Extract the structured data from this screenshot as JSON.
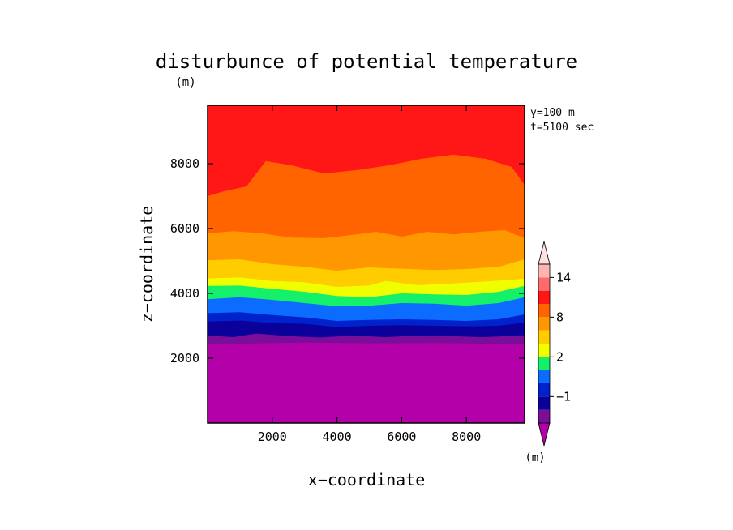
{
  "chart_data": {
    "type": "contour",
    "title": "disturbunce of potential temperature",
    "xlabel": "x−coordinate",
    "ylabel": "z−coordinate",
    "yunit": "(m)",
    "xticks": [
      "2000",
      "4000",
      "6000",
      "8000"
    ],
    "yticks": [
      "2000",
      "4000",
      "6000",
      "8000"
    ],
    "xtick_values": [
      2000,
      4000,
      6000,
      8000
    ],
    "ytick_values": [
      2000,
      4000,
      6000,
      8000
    ],
    "xlim": [
      0,
      9800
    ],
    "ylim": [
      0,
      9800
    ],
    "annotations": [
      "y=100 m",
      "t=5100 sec"
    ],
    "colorbar": {
      "unit": "(m)",
      "tick_labels": [
        "14",
        "8",
        "2",
        "−1"
      ],
      "tick_levels": [
        14,
        8,
        2,
        -1
      ],
      "levels": [
        -3,
        -2,
        -1,
        0,
        1,
        2,
        4,
        6,
        8,
        10,
        12,
        14,
        16
      ],
      "colors": [
        "#7a0d9a",
        "#0c009a",
        "#0022cc",
        "#0c6cff",
        "#14f06a",
        "#f0ff00",
        "#ffcc00",
        "#ff9800",
        "#ff6400",
        "#ff1616",
        "#ff6a6a",
        "#ffb4b4"
      ],
      "under_color": "#b400a8",
      "over_color": "#ffe0e0"
    },
    "contour_bands": [
      {
        "level": -3,
        "color": "#b400a8",
        "top": [
          [
            0,
            2420
          ],
          [
            1500,
            2460
          ],
          [
            3000,
            2480
          ],
          [
            5000,
            2460
          ],
          [
            7000,
            2470
          ],
          [
            8500,
            2450
          ],
          [
            9800,
            2440
          ]
        ]
      },
      {
        "level": -2,
        "color": "#7a0d9a",
        "top": [
          [
            0,
            2700
          ],
          [
            800,
            2650
          ],
          [
            1500,
            2760
          ],
          [
            2500,
            2680
          ],
          [
            3500,
            2640
          ],
          [
            4500,
            2700
          ],
          [
            5500,
            2650
          ],
          [
            6500,
            2700
          ],
          [
            7500,
            2680
          ],
          [
            8500,
            2650
          ],
          [
            9800,
            2700
          ]
        ]
      },
      {
        "level": -1,
        "color": "#0c009a",
        "top": [
          [
            0,
            3130
          ],
          [
            1000,
            3160
          ],
          [
            2000,
            3080
          ],
          [
            3000,
            3060
          ],
          [
            4000,
            2960
          ],
          [
            5000,
            3000
          ],
          [
            6000,
            3020
          ],
          [
            7000,
            3000
          ],
          [
            8000,
            2980
          ],
          [
            9000,
            3000
          ],
          [
            9800,
            3100
          ]
        ]
      },
      {
        "level": 0,
        "color": "#0022cc",
        "top": [
          [
            0,
            3390
          ],
          [
            1000,
            3420
          ],
          [
            2000,
            3330
          ],
          [
            3000,
            3260
          ],
          [
            4000,
            3150
          ],
          [
            5000,
            3180
          ],
          [
            6000,
            3200
          ],
          [
            7000,
            3180
          ],
          [
            8000,
            3150
          ],
          [
            9000,
            3200
          ],
          [
            9800,
            3350
          ]
        ]
      },
      {
        "level": 1,
        "color": "#0c6cff",
        "top": [
          [
            0,
            3820
          ],
          [
            1000,
            3880
          ],
          [
            2000,
            3800
          ],
          [
            3000,
            3700
          ],
          [
            4000,
            3600
          ],
          [
            5000,
            3620
          ],
          [
            6000,
            3700
          ],
          [
            7000,
            3680
          ],
          [
            8000,
            3620
          ],
          [
            9000,
            3700
          ],
          [
            9800,
            3880
          ]
        ]
      },
      {
        "level": 2,
        "color": "#14f06a",
        "top": [
          [
            0,
            4230
          ],
          [
            1000,
            4240
          ],
          [
            2000,
            4140
          ],
          [
            3000,
            4050
          ],
          [
            4000,
            3920
          ],
          [
            5000,
            3880
          ],
          [
            6000,
            4000
          ],
          [
            7000,
            3970
          ],
          [
            8000,
            3950
          ],
          [
            9000,
            4050
          ],
          [
            9800,
            4230
          ]
        ]
      },
      {
        "level": 4,
        "color": "#f0ff00",
        "top": [
          [
            0,
            4460
          ],
          [
            1000,
            4490
          ],
          [
            2000,
            4380
          ],
          [
            3000,
            4340
          ],
          [
            4000,
            4200
          ],
          [
            5000,
            4240
          ],
          [
            5500,
            4380
          ],
          [
            6500,
            4250
          ],
          [
            7500,
            4300
          ],
          [
            8500,
            4360
          ],
          [
            9800,
            4450
          ]
        ]
      },
      {
        "level": 6,
        "color": "#ffcc00",
        "top": [
          [
            0,
            5020
          ],
          [
            1000,
            5050
          ],
          [
            2000,
            4900
          ],
          [
            3000,
            4820
          ],
          [
            4000,
            4700
          ],
          [
            5000,
            4800
          ],
          [
            6000,
            4760
          ],
          [
            7000,
            4720
          ],
          [
            8000,
            4750
          ],
          [
            9000,
            4820
          ],
          [
            9800,
            5050
          ]
        ]
      },
      {
        "level": 8,
        "color": "#ff9800",
        "top": [
          [
            0,
            5850
          ],
          [
            800,
            5920
          ],
          [
            1600,
            5860
          ],
          [
            2600,
            5720
          ],
          [
            3600,
            5700
          ],
          [
            4600,
            5820
          ],
          [
            5200,
            5900
          ],
          [
            6000,
            5750
          ],
          [
            6800,
            5900
          ],
          [
            7600,
            5820
          ],
          [
            8400,
            5900
          ],
          [
            9200,
            5950
          ],
          [
            9800,
            5700
          ]
        ]
      },
      {
        "level": 10,
        "color": "#ff6400",
        "top": [
          [
            0,
            7000
          ],
          [
            500,
            7150
          ],
          [
            1200,
            7300
          ],
          [
            1800,
            8080
          ],
          [
            2600,
            7950
          ],
          [
            3600,
            7700
          ],
          [
            4600,
            7800
          ],
          [
            5600,
            7950
          ],
          [
            6600,
            8150
          ],
          [
            7600,
            8280
          ],
          [
            8600,
            8150
          ],
          [
            9400,
            7900
          ],
          [
            9800,
            7350
          ]
        ]
      },
      {
        "level": 12,
        "color": "#ff1616",
        "top": [
          [
            0,
            9800
          ],
          [
            9800,
            9800
          ]
        ]
      }
    ]
  }
}
